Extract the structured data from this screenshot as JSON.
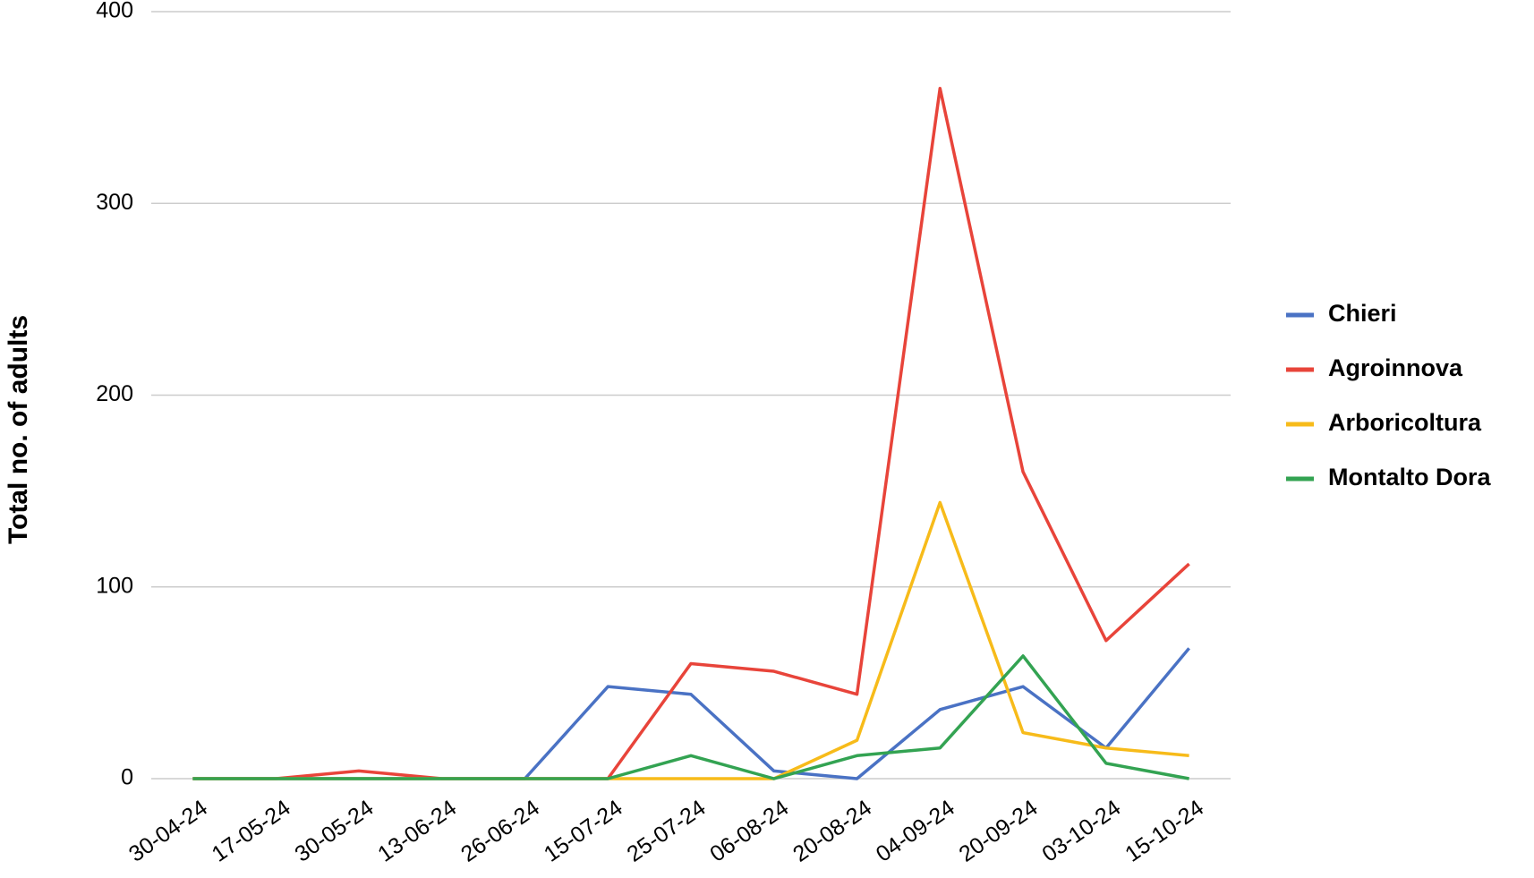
{
  "chart_data": {
    "type": "line",
    "ylabel": "Total no. of adults",
    "categories": [
      "30-04-24",
      "17-05-24",
      "30-05-24",
      "13-06-24",
      "26-06-24",
      "15-07-24",
      "25-07-24",
      "06-08-24",
      "20-08-24",
      "04-09-24",
      "20-09-24",
      "03-10-24",
      "15-10-24"
    ],
    "series": [
      {
        "name": "Chieri",
        "color": "#4a72c4",
        "values": [
          0,
          0,
          0,
          0,
          0,
          48,
          44,
          4,
          0,
          36,
          48,
          16,
          68
        ]
      },
      {
        "name": "Agroinnova",
        "color": "#e8443a",
        "values": [
          0,
          0,
          4,
          0,
          0,
          0,
          60,
          56,
          44,
          360,
          160,
          72,
          112
        ]
      },
      {
        "name": "Arboricoltura",
        "color": "#f7bb1a",
        "values": [
          0,
          0,
          0,
          0,
          0,
          0,
          0,
          0,
          20,
          144,
          24,
          16,
          12
        ]
      },
      {
        "name": "Montalto Dora",
        "color": "#33a352",
        "values": [
          0,
          0,
          0,
          0,
          0,
          0,
          12,
          0,
          12,
          16,
          64,
          8,
          0
        ]
      }
    ],
    "ylim": [
      0,
      400
    ],
    "yticks": [
      0,
      100,
      200,
      300,
      400
    ],
    "grid": true,
    "legend": "right"
  }
}
